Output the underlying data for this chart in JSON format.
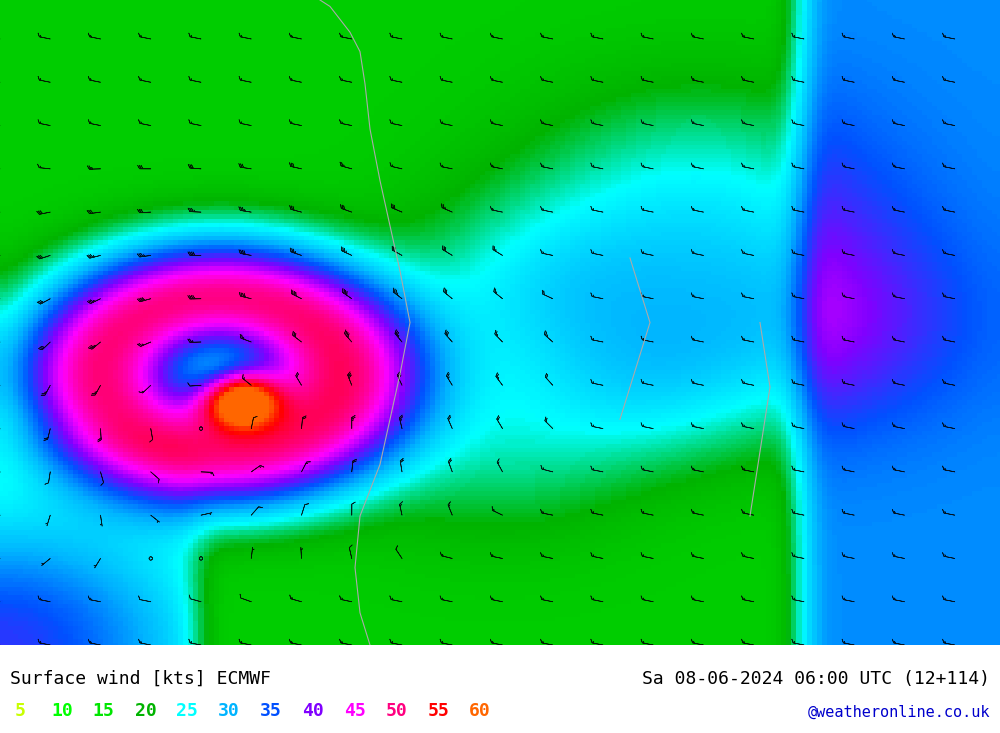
{
  "title_left": "Surface wind [kts] ECMWF",
  "title_right": "Sa 08-06-2024 06:00 UTC (12+114)",
  "credit": "@weatheronline.co.uk",
  "legend_values": [
    5,
    10,
    15,
    20,
    25,
    30,
    35,
    40,
    45,
    50,
    55,
    60
  ],
  "legend_colors": [
    "#c8ff00",
    "#00ff00",
    "#00e600",
    "#00b300",
    "#00ffff",
    "#00b4ff",
    "#0050ff",
    "#8000ff",
    "#ff00ff",
    "#ff0080",
    "#ff0000",
    "#ff6600"
  ],
  "colormap_levels": [
    0,
    5,
    10,
    15,
    20,
    25,
    30,
    35,
    40,
    45,
    50,
    55,
    60
  ],
  "colormap_colors": [
    "#ffff00",
    "#c8ff00",
    "#00ff00",
    "#00e600",
    "#00b300",
    "#00ffff",
    "#00b4ff",
    "#0050ff",
    "#8000ff",
    "#ff00ff",
    "#ff0080",
    "#ff0000",
    "#ff6600"
  ],
  "bg_color": "#ffffff",
  "map_bg": "#ffff00",
  "figsize": [
    10,
    7.33
  ],
  "dpi": 100,
  "seed": 42
}
